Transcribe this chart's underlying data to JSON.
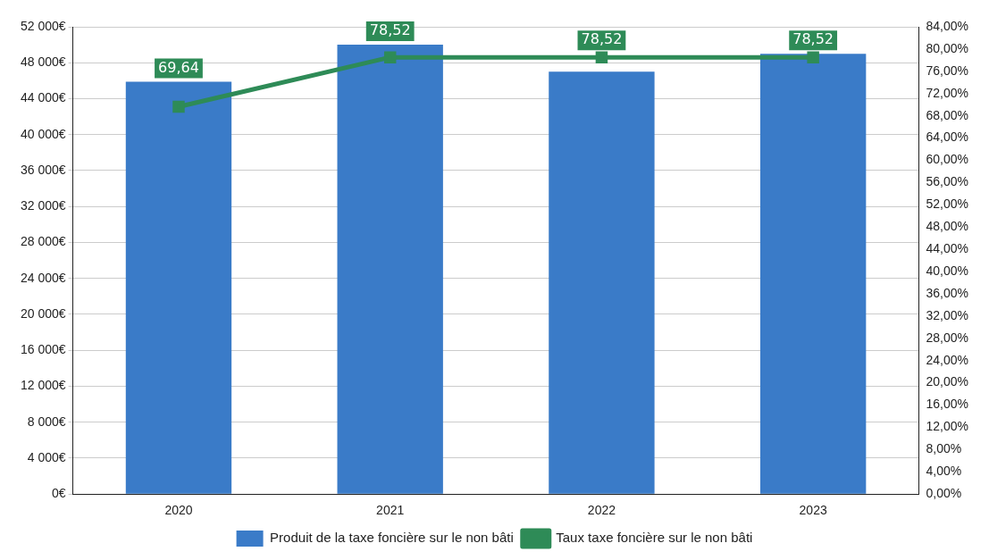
{
  "chart_data": {
    "type": "bar",
    "categories": [
      "2020",
      "2021",
      "2022",
      "2023"
    ],
    "series": [
      {
        "name": "Produit de la taxe foncière sur le non bâti",
        "color": "#3a7bc8",
        "values": [
          45900,
          50000,
          47000,
          49000
        ]
      },
      {
        "name": "Taux taxe foncière sur le non bâti",
        "type": "line",
        "axis": "y2",
        "color": "#2e8b57",
        "values": [
          69.64,
          78.52,
          78.52,
          78.52
        ],
        "value_labels": [
          "69,64",
          "78,52",
          "78,52",
          "78,52"
        ]
      }
    ],
    "ylim": [
      0,
      52000
    ],
    "yticks": [
      {
        "value": 0,
        "label": "0€"
      },
      {
        "value": 4000,
        "label": "4 000€"
      },
      {
        "value": 8000,
        "label": "8 000€"
      },
      {
        "value": 12000,
        "label": "12 000€"
      },
      {
        "value": 16000,
        "label": "16 000€"
      },
      {
        "value": 20000,
        "label": "20 000€"
      },
      {
        "value": 24000,
        "label": "24 000€"
      },
      {
        "value": 28000,
        "label": "28 000€"
      },
      {
        "value": 32000,
        "label": "32 000€"
      },
      {
        "value": 36000,
        "label": "36 000€"
      },
      {
        "value": 40000,
        "label": "40 000€"
      },
      {
        "value": 44000,
        "label": "44 000€"
      },
      {
        "value": 48000,
        "label": "48 000€"
      },
      {
        "value": 52000,
        "label": "52 000€"
      }
    ],
    "y2lim": [
      0,
      84
    ],
    "y2ticks": [
      {
        "value": 0,
        "label": "0,00%"
      },
      {
        "value": 4,
        "label": "4,00%"
      },
      {
        "value": 8,
        "label": "8,00%"
      },
      {
        "value": 12,
        "label": "12,00%"
      },
      {
        "value": 16,
        "label": "16,00%"
      },
      {
        "value": 20,
        "label": "20,00%"
      },
      {
        "value": 24,
        "label": "24,00%"
      },
      {
        "value": 28,
        "label": "28,00%"
      },
      {
        "value": 32,
        "label": "32,00%"
      },
      {
        "value": 36,
        "label": "36,00%"
      },
      {
        "value": 40,
        "label": "40,00%"
      },
      {
        "value": 44,
        "label": "44,00%"
      },
      {
        "value": 48,
        "label": "48,00%"
      },
      {
        "value": 52,
        "label": "52,00%"
      },
      {
        "value": 56,
        "label": "56,00%"
      },
      {
        "value": 60,
        "label": "60,00%"
      },
      {
        "value": 64,
        "label": "64,00%"
      },
      {
        "value": 68,
        "label": "68,00%"
      },
      {
        "value": 72,
        "label": "72,00%"
      },
      {
        "value": 76,
        "label": "76,00%"
      },
      {
        "value": 80,
        "label": "80,00%"
      },
      {
        "value": 84,
        "label": "84,00%"
      }
    ],
    "grid": "y",
    "legend": "bottom",
    "marker": "square",
    "line_style": "solid"
  }
}
